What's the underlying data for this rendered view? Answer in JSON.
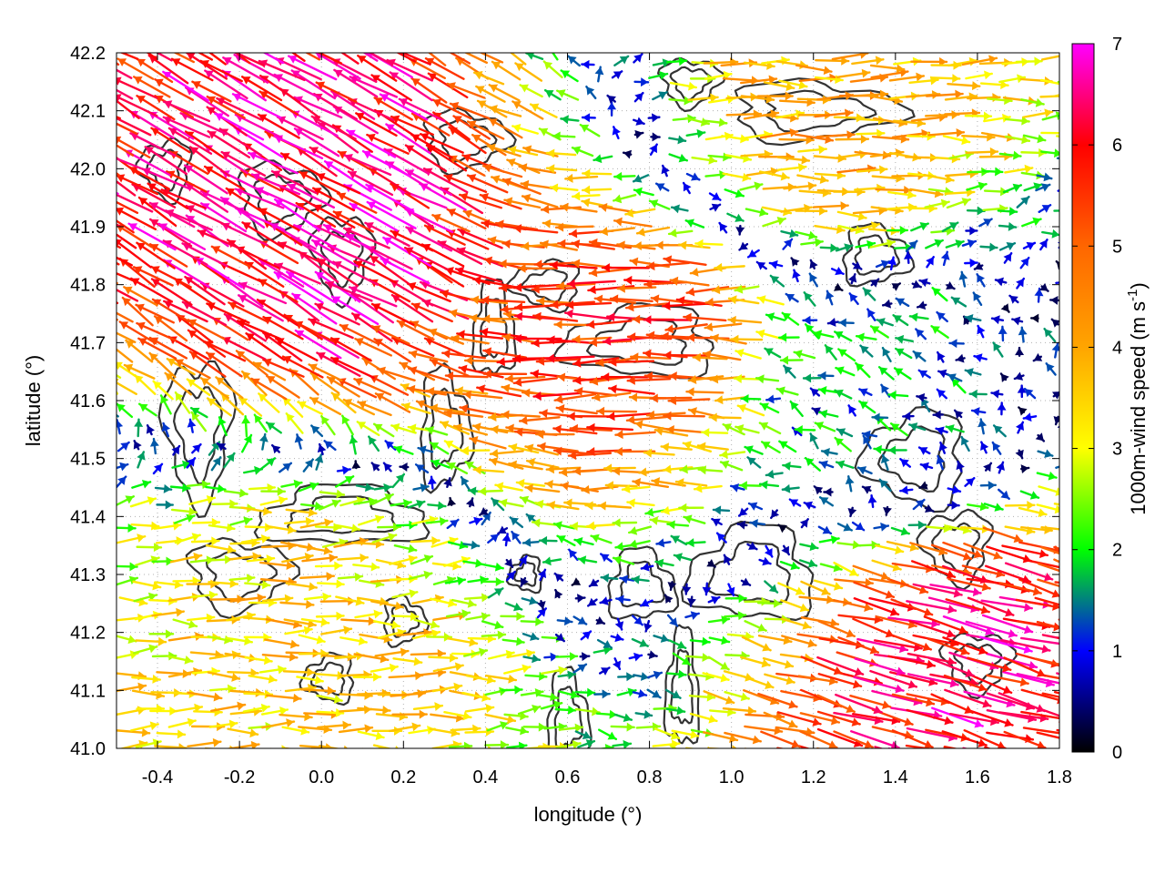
{
  "chart_data": {
    "type": "vector-field",
    "title": "",
    "xlabel": "longitude (°)",
    "ylabel": "latitude (°)",
    "colorbar_label": "1000m-wind speed (m s⁻¹)",
    "colorbar_label_parts": {
      "main": "1000m-wind speed (m s",
      "sup": "-1",
      "end": ")"
    },
    "xlim": [
      -0.5,
      1.8
    ],
    "ylim": [
      41.0,
      42.2
    ],
    "clim": [
      0,
      7
    ],
    "x_ticks": [
      "-0.4",
      "-0.2",
      "0.0",
      "0.2",
      "0.4",
      "0.6",
      "0.8",
      "1.0",
      "1.2",
      "1.4",
      "1.6",
      "1.8"
    ],
    "x_tick_values": [
      -0.4,
      -0.2,
      0.0,
      0.2,
      0.4,
      0.6,
      0.8,
      1.0,
      1.2,
      1.4,
      1.6,
      1.8
    ],
    "y_ticks": [
      "41.0",
      "41.1",
      "41.2",
      "41.3",
      "41.4",
      "41.5",
      "41.6",
      "41.7",
      "41.8",
      "41.9",
      "42.0",
      "42.1",
      "42.2"
    ],
    "y_tick_values": [
      41.0,
      41.1,
      41.2,
      41.3,
      41.4,
      41.5,
      41.6,
      41.7,
      41.8,
      41.9,
      42.0,
      42.1,
      42.2
    ],
    "colorbar_ticks": [
      "0",
      "1",
      "2",
      "3",
      "4",
      "5",
      "6",
      "7"
    ],
    "colorbar_tick_values": [
      0,
      1,
      2,
      3,
      4,
      5,
      6,
      7
    ],
    "colormap": [
      "#000000",
      "#0000ff",
      "#00ff00",
      "#ffff00",
      "#ffa500",
      "#ff0000",
      "#ff00ff"
    ],
    "grid": true,
    "wind_regimes": [
      {
        "region": "north-west",
        "lon": [
          -0.5,
          0.6
        ],
        "lat": [
          41.6,
          42.2
        ],
        "speed": 6.5,
        "direction_deg": 150
      },
      {
        "region": "north-east",
        "lon": [
          0.6,
          1.8
        ],
        "lat": [
          41.9,
          42.2
        ],
        "speed": 4.0,
        "direction_deg": 0
      },
      {
        "region": "centre",
        "lon": [
          0.5,
          1.1
        ],
        "lat": [
          41.6,
          41.85
        ],
        "speed": 5.5,
        "direction_deg": 180
      },
      {
        "region": "south-west",
        "lon": [
          -0.5,
          0.4
        ],
        "lat": [
          41.0,
          41.35
        ],
        "speed": 3.5,
        "direction_deg": 0
      },
      {
        "region": "south-east",
        "lon": [
          1.3,
          1.8
        ],
        "lat": [
          41.0,
          41.35
        ],
        "speed": 6.2,
        "direction_deg": -15
      },
      {
        "region": "east-calm",
        "lon": [
          1.0,
          1.7
        ],
        "lat": [
          41.35,
          41.85
        ],
        "speed": 1.5,
        "direction_deg": 150
      }
    ],
    "contour_color": "#333333"
  }
}
